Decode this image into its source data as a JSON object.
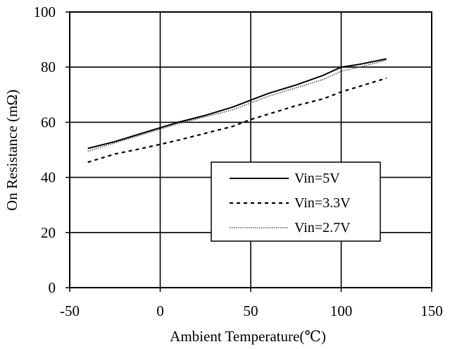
{
  "chart_data": {
    "type": "line",
    "title": "",
    "xlabel": "Ambient Temperature(℃)",
    "ylabel": "On Resistance (mΩ)",
    "xlim": [
      -50,
      150
    ],
    "ylim": [
      0,
      100
    ],
    "x_ticks": [
      -50,
      0,
      50,
      100,
      150
    ],
    "y_ticks": [
      0,
      20,
      40,
      60,
      80,
      100
    ],
    "x_tick_labels": [
      "-50",
      "0",
      "50",
      "100",
      "150"
    ],
    "y_tick_labels": [
      "0",
      "20",
      "40",
      "60",
      "80",
      "100"
    ],
    "grid": true,
    "legend_position": "center-right",
    "series": [
      {
        "name": "Vin=5V",
        "style": "solid",
        "color": "#000000",
        "x": [
          -40,
          -25,
          -10,
          0,
          10,
          25,
          40,
          50,
          60,
          75,
          90,
          100,
          110,
          125
        ],
        "y": [
          50.5,
          53,
          56,
          58,
          60,
          62.5,
          65.5,
          68,
          70.5,
          73.5,
          77,
          80,
          81,
          83
        ]
      },
      {
        "name": "Vin=3.3V",
        "style": "dashed",
        "color": "#000000",
        "x": [
          -40,
          -25,
          -10,
          0,
          10,
          25,
          40,
          50,
          60,
          75,
          90,
          100,
          110,
          125
        ],
        "y": [
          45.5,
          48.5,
          50.5,
          52,
          53.5,
          56,
          58.5,
          61,
          63,
          66,
          68.5,
          71,
          73,
          76
        ]
      },
      {
        "name": "Vin=2.7V",
        "style": "dotted",
        "color": "#555555",
        "x": [
          -40,
          -25,
          -10,
          0,
          10,
          25,
          40,
          50,
          60,
          75,
          90,
          100,
          110,
          125
        ],
        "y": [
          49.5,
          52.5,
          55.5,
          57.5,
          59.5,
          62,
          64.5,
          67,
          69.5,
          72.5,
          75.5,
          78.5,
          80,
          82.5
        ]
      }
    ]
  }
}
